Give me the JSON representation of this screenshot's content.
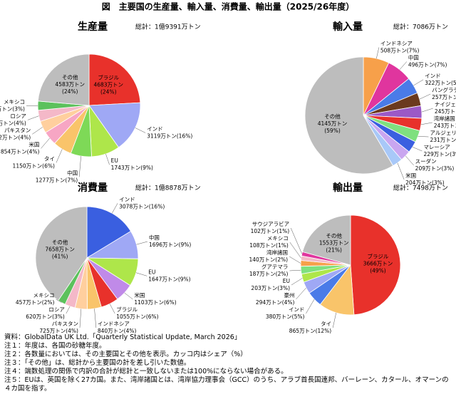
{
  "title": "図　主要国の生産量、輸入量、消費量、輸出量（2025/26年度）",
  "chart_data": [
    {
      "type": "pie",
      "title": "生産量",
      "subtitle": "総計：1億9391万トン",
      "categories": [
        "ブラジル",
        "インド",
        "EU",
        "中国",
        "タイ",
        "米国",
        "パキスタン",
        "ロシア",
        "メキシコ",
        "その他"
      ],
      "values": [
        4683,
        3119,
        1743,
        1277,
        1150,
        854,
        742,
        683,
        558,
        4583
      ],
      "value_labels": [
        "4683万トン",
        "3119万トン",
        "1743万トン",
        "1277万トン",
        "1150万トン",
        "854万トン",
        "742万トン",
        "683万トン",
        "558万トン",
        "4583万トン"
      ],
      "percent_labels": [
        "(24%)",
        "(16%)",
        "(9%)",
        "(7%)",
        "(6%)",
        "(4%)",
        "(4%)",
        "(4%)",
        "(3%)",
        "(24%)"
      ],
      "colors": [
        "#e8312b",
        "#9fa8f5",
        "#aee64a",
        "#7ed957",
        "#f9c46a",
        "#f7a6c4",
        "#ffcf9e",
        "#f4b8c8",
        "#5cc15c",
        "#bdbdbd"
      ]
    },
    {
      "type": "pie",
      "title": "輸入量",
      "subtitle": "総計：7086万トン",
      "categories": [
        "インドネシア",
        "中国",
        "インド",
        "バングラディシュ",
        "ナイジェリア",
        "湾岸諸国",
        "アルジェリア",
        "マレーシア",
        "スーダン",
        "米国",
        "その他"
      ],
      "values": [
        508,
        496,
        322,
        257,
        245,
        243,
        231,
        229,
        209,
        204,
        4145
      ],
      "value_labels": [
        "508万トン",
        "496万トン",
        "322万トン",
        "257万トン",
        "245万トン",
        "243万トン",
        "231万トン",
        "229万トン",
        "209万トン",
        "204万トン",
        "4145万トン"
      ],
      "percent_labels": [
        "(7%)",
        "(7%)",
        "(5%)",
        "(4%)",
        "(3%)",
        "(3%)",
        "(3%)",
        "(3%)",
        "(3%)",
        "(3%)",
        "(59%)"
      ],
      "colors": [
        "#f7a04a",
        "#e0359e",
        "#4a7be8",
        "#6b3a1e",
        "#9b59c6",
        "#e8312b",
        "#7fe07f",
        "#3a5fe0",
        "#c9a6f0",
        "#a8c8f8",
        "#bdbdbd"
      ]
    },
    {
      "type": "pie",
      "title": "消費量",
      "subtitle": "総計：1億8878万トン",
      "categories": [
        "インド",
        "中国",
        "EU",
        "米国",
        "ブラジル",
        "インドネシア",
        "パキスタン",
        "ロシア",
        "メキシコ",
        "その他"
      ],
      "values": [
        3078,
        1696,
        1647,
        1103,
        1055,
        840,
        725,
        620,
        457,
        7658
      ],
      "value_labels": [
        "3078万トン",
        "1696万トン",
        "1647万トン",
        "1103万トン",
        "1055万トン",
        "840万トン",
        "725万トン",
        "620万トン",
        "457万トン",
        "7658万トン"
      ],
      "percent_labels": [
        "(16%)",
        "(9%)",
        "(9%)",
        "(6%)",
        "(6%)",
        "(4%)",
        "(4%)",
        "(3%)",
        "(2%)",
        "(41%)"
      ],
      "colors": [
        "#3a5fe0",
        "#9fa8f5",
        "#aee64a",
        "#c08ae8",
        "#e8312b",
        "#f9c46a",
        "#ffcf9e",
        "#f4b8c8",
        "#5cc15c",
        "#bdbdbd"
      ]
    },
    {
      "type": "pie",
      "title": "輸出量",
      "subtitle": "総計：7498万トン",
      "categories": [
        "ブラジル",
        "タイ",
        "インド",
        "豪州",
        "EU",
        "グアテマラ",
        "湾岸諸国",
        "メキシコ",
        "サウジアラビア",
        "その他"
      ],
      "values": [
        3666,
        865,
        380,
        294,
        203,
        187,
        140,
        108,
        102,
        1553
      ],
      "value_labels": [
        "3666万トン",
        "865万トン",
        "380万トン",
        "294万トン",
        "203万トン",
        "187万トン",
        "140万トン",
        "108万トン",
        "102万トン",
        "1553万トン"
      ],
      "percent_labels": [
        "(49%)",
        "(12%)",
        "(5%)",
        "(4%)",
        "(3%)",
        "(2%)",
        "(2%)",
        "(1%)",
        "(1%)",
        "(21%)"
      ],
      "colors": [
        "#e8312b",
        "#f9c46a",
        "#4a7be8",
        "#9fa8f5",
        "#aee64a",
        "#7fe07f",
        "#f7a04a",
        "#f4b8c8",
        "#e0359e",
        "#bdbdbd"
      ]
    }
  ],
  "notes": [
    "資料：GlobalData UK Ltd.「Quarterly Statistical Update, March 2026」",
    "注１：年度は、各国の砂糖年度。",
    "注２：各数量においては、その主要国とその他を表示。カッコ内はシェア（%）",
    "注３：「その他」は、総計から主要国の計を差し引いた数値。",
    "注４：端数処理の関係で内訳の合計が総計と一致しないまたは100%にならない場合がある。",
    "注５：EUは、英国を除く27カ国。また、湾岸諸国とは、湾岸協力理事会（GCC）のうち、アラブ首長国連邦、バーレーン、カタール、オマーンの４カ国を指す。"
  ]
}
